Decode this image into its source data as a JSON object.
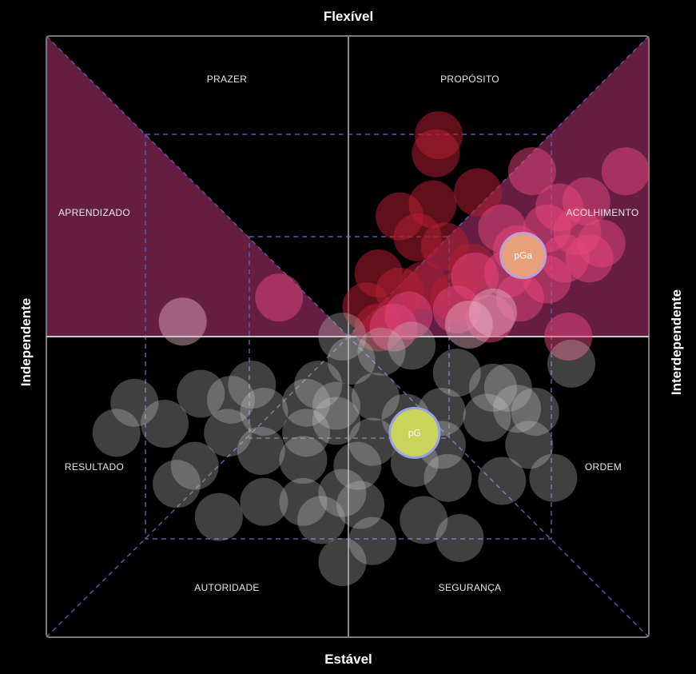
{
  "chart_data": {
    "type": "scatter",
    "title": "",
    "axes": {
      "top": "Flexível",
      "bottom": "Estável",
      "left": "Independente",
      "right": "Interdependente"
    },
    "zones": [
      {
        "name": "PRAZER",
        "highlighted": false
      },
      {
        "name": "PROPÓSITO",
        "highlighted": false
      },
      {
        "name": "APRENDIZADO",
        "highlighted": true
      },
      {
        "name": "ACOLHIMENTO",
        "highlighted": true
      },
      {
        "name": "RESULTADO",
        "highlighted": false
      },
      {
        "name": "ORDEM",
        "highlighted": false
      },
      {
        "name": "AUTORIDADE",
        "highlighted": false
      },
      {
        "name": "SEGURANÇA",
        "highlighted": false
      }
    ],
    "markers": [
      {
        "label": "pGa",
        "x": 0.58,
        "y": 0.27,
        "color": "#e8a07a"
      },
      {
        "label": "pG",
        "x": 0.22,
        "y": -0.32,
        "color": "#c8d45a"
      }
    ],
    "point_groups": [
      {
        "name": "dark-red",
        "color": "#b01e32",
        "points": [
          [
            0.3,
            0.67
          ],
          [
            0.29,
            0.61
          ],
          [
            0.43,
            0.48
          ],
          [
            0.28,
            0.44
          ],
          [
            0.17,
            0.4
          ],
          [
            0.23,
            0.33
          ],
          [
            0.32,
            0.3
          ],
          [
            0.41,
            0.23
          ],
          [
            0.1,
            0.21
          ],
          [
            0.17,
            0.15
          ],
          [
            0.06,
            0.1
          ],
          [
            0.25,
            0.17
          ],
          [
            0.35,
            0.13
          ],
          [
            0.1,
            0.03
          ]
        ]
      },
      {
        "name": "pink",
        "color": "#e8467c",
        "points": [
          [
            0.92,
            0.55
          ],
          [
            0.61,
            0.55
          ],
          [
            0.79,
            0.45
          ],
          [
            0.7,
            0.43
          ],
          [
            0.51,
            0.36
          ],
          [
            0.66,
            0.36
          ],
          [
            0.76,
            0.35
          ],
          [
            0.84,
            0.31
          ],
          [
            0.56,
            0.29
          ],
          [
            0.72,
            0.26
          ],
          [
            0.8,
            0.26
          ],
          [
            0.42,
            0.2
          ],
          [
            0.53,
            0.21
          ],
          [
            0.66,
            0.19
          ],
          [
            0.36,
            0.09
          ],
          [
            0.57,
            0.13
          ],
          [
            0.2,
            0.07
          ],
          [
            0.47,
            0.06
          ],
          [
            0.73,
            0.0
          ],
          [
            -0.23,
            0.13
          ],
          [
            0.15,
            0.03
          ]
        ]
      },
      {
        "name": "light-pink",
        "color": "#e8b4c8",
        "points": [
          [
            0.48,
            0.08
          ],
          [
            0.4,
            0.04
          ],
          [
            -0.55,
            0.05
          ]
        ]
      },
      {
        "name": "white",
        "color": "#c8c8c8",
        "points": [
          [
            -0.02,
            0.0
          ],
          [
            0.21,
            -0.03
          ],
          [
            0.11,
            -0.05
          ],
          [
            0.36,
            -0.12
          ],
          [
            0.01,
            -0.08
          ],
          [
            0.48,
            -0.17
          ],
          [
            -0.1,
            -0.16
          ],
          [
            0.53,
            -0.17
          ],
          [
            -0.32,
            -0.16
          ],
          [
            -0.49,
            -0.19
          ],
          [
            0.09,
            -0.2
          ],
          [
            0.56,
            -0.24
          ],
          [
            -0.14,
            -0.22
          ],
          [
            -0.39,
            -0.21
          ],
          [
            -0.71,
            -0.22
          ],
          [
            0.46,
            -0.27
          ],
          [
            -0.28,
            -0.25
          ],
          [
            -0.04,
            -0.23
          ],
          [
            0.31,
            -0.25
          ],
          [
            -0.61,
            -0.29
          ],
          [
            0.19,
            -0.27
          ],
          [
            -0.4,
            -0.32
          ],
          [
            -0.14,
            -0.32
          ],
          [
            -0.04,
            -0.28
          ],
          [
            0.08,
            -0.35
          ],
          [
            0.31,
            -0.36
          ],
          [
            -0.29,
            -0.38
          ],
          [
            -0.51,
            -0.43
          ],
          [
            -0.15,
            -0.41
          ],
          [
            0.6,
            -0.36
          ],
          [
            0.22,
            -0.42
          ],
          [
            0.03,
            -0.43
          ],
          [
            -0.57,
            -0.49
          ],
          [
            -0.02,
            -0.52
          ],
          [
            0.33,
            -0.47
          ],
          [
            -0.28,
            -0.55
          ],
          [
            -0.15,
            -0.55
          ],
          [
            0.04,
            -0.56
          ],
          [
            0.51,
            -0.48
          ],
          [
            -0.09,
            -0.61
          ],
          [
            0.25,
            -0.61
          ],
          [
            0.08,
            -0.68
          ],
          [
            -0.02,
            -0.75
          ],
          [
            0.37,
            -0.67
          ],
          [
            0.68,
            -0.47
          ],
          [
            -0.77,
            -0.32
          ],
          [
            0.62,
            -0.25
          ],
          [
            -0.43,
            -0.6
          ],
          [
            0.74,
            -0.09
          ]
        ]
      }
    ]
  }
}
